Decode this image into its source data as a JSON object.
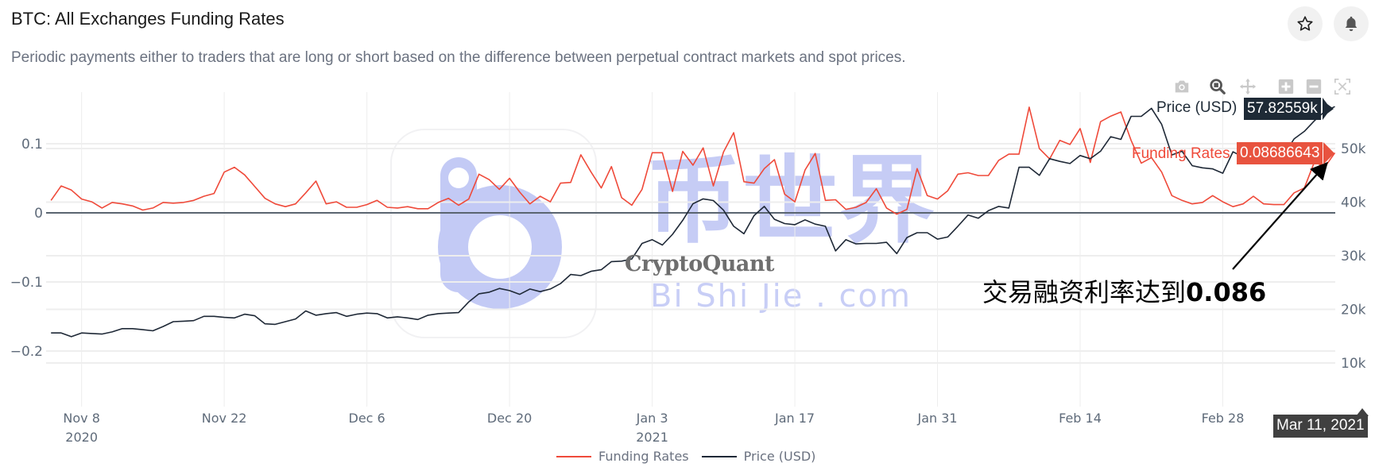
{
  "header": {
    "title": "BTC: All Exchanges Funding Rates",
    "subtitle": "Periodic payments either to traders that are long or short based on the difference between perpetual contract markets and spot prices.",
    "star_icon": "star-icon",
    "bell_icon": "bell-icon"
  },
  "modebar": [
    "camera-icon",
    "zoom-icon",
    "pan-icon",
    "zoom-in-icon",
    "zoom-out-icon",
    "autoscale-icon"
  ],
  "colors": {
    "funding": "#ef4a3a",
    "price": "#1f2937",
    "funding_label_bg": "#e8533f",
    "price_label_bg": "#1e2a36",
    "watermark": "#c3caf5"
  },
  "watermark": {
    "cn": "币世界",
    "en": "Bi Shi Jie . com",
    "brand": "CryptoQuant"
  },
  "annotation": {
    "text": "交易融资利率达到",
    "value": "0.086"
  },
  "hover": {
    "date_label": "Mar 11, 2021",
    "price_name": "Price (USD)",
    "price_value": "57.82559k",
    "funding_name": "Funding Rates",
    "funding_value": "0.08686643"
  },
  "chart_data": {
    "type": "line",
    "title": "",
    "xlabel": "",
    "ylabel_left": "",
    "ylabel_right": "",
    "grid": true,
    "legend_position": "bottom-center",
    "x_ticks": [
      {
        "date": "2020-11-08",
        "label": "Nov 8",
        "sublabel": "2020"
      },
      {
        "date": "2020-11-22",
        "label": "Nov 22",
        "sublabel": ""
      },
      {
        "date": "2020-12-06",
        "label": "Dec 6",
        "sublabel": ""
      },
      {
        "date": "2020-12-20",
        "label": "Dec 20",
        "sublabel": ""
      },
      {
        "date": "2021-01-03",
        "label": "Jan 3",
        "sublabel": "2021"
      },
      {
        "date": "2021-01-17",
        "label": "Jan 17",
        "sublabel": ""
      },
      {
        "date": "2021-01-31",
        "label": "Jan 31",
        "sublabel": ""
      },
      {
        "date": "2021-02-14",
        "label": "Feb 14",
        "sublabel": ""
      },
      {
        "date": "2021-02-28",
        "label": "Feb 28",
        "sublabel": ""
      }
    ],
    "y_left": {
      "ticks": [
        0.1,
        0,
        -0.1,
        -0.2
      ],
      "tick_labels": [
        "0.1",
        "0",
        "−0.1",
        "−0.2"
      ],
      "range": [
        -0.26,
        0.16
      ]
    },
    "y_right": {
      "ticks": [
        50000,
        40000,
        30000,
        20000,
        10000
      ],
      "tick_labels": [
        "50k",
        "40k",
        "30k",
        "20k",
        "10k"
      ],
      "range": [
        0,
        58000
      ]
    },
    "x": [
      "2020-11-05",
      "2020-11-06",
      "2020-11-07",
      "2020-11-08",
      "2020-11-09",
      "2020-11-10",
      "2020-11-11",
      "2020-11-12",
      "2020-11-13",
      "2020-11-14",
      "2020-11-15",
      "2020-11-16",
      "2020-11-17",
      "2020-11-18",
      "2020-11-19",
      "2020-11-20",
      "2020-11-21",
      "2020-11-22",
      "2020-11-23",
      "2020-11-24",
      "2020-11-25",
      "2020-11-26",
      "2020-11-27",
      "2020-11-28",
      "2020-11-29",
      "2020-11-30",
      "2020-12-01",
      "2020-12-02",
      "2020-12-03",
      "2020-12-04",
      "2020-12-05",
      "2020-12-06",
      "2020-12-07",
      "2020-12-08",
      "2020-12-09",
      "2020-12-10",
      "2020-12-11",
      "2020-12-12",
      "2020-12-13",
      "2020-12-14",
      "2020-12-15",
      "2020-12-16",
      "2020-12-17",
      "2020-12-18",
      "2020-12-19",
      "2020-12-20",
      "2020-12-21",
      "2020-12-22",
      "2020-12-23",
      "2020-12-24",
      "2020-12-25",
      "2020-12-26",
      "2020-12-27",
      "2020-12-28",
      "2020-12-29",
      "2020-12-30",
      "2020-12-31",
      "2021-01-01",
      "2021-01-02",
      "2021-01-03",
      "2021-01-04",
      "2021-01-05",
      "2021-01-06",
      "2021-01-07",
      "2021-01-08",
      "2021-01-09",
      "2021-01-10",
      "2021-01-11",
      "2021-01-12",
      "2021-01-13",
      "2021-01-14",
      "2021-01-15",
      "2021-01-16",
      "2021-01-17",
      "2021-01-18",
      "2021-01-19",
      "2021-01-20",
      "2021-01-21",
      "2021-01-22",
      "2021-01-23",
      "2021-01-24",
      "2021-01-25",
      "2021-01-26",
      "2021-01-27",
      "2021-01-28",
      "2021-01-29",
      "2021-01-30",
      "2021-01-31",
      "2021-02-01",
      "2021-02-02",
      "2021-02-03",
      "2021-02-04",
      "2021-02-05",
      "2021-02-06",
      "2021-02-07",
      "2021-02-08",
      "2021-02-09",
      "2021-02-10",
      "2021-02-11",
      "2021-02-12",
      "2021-02-13",
      "2021-02-14",
      "2021-02-15",
      "2021-02-16",
      "2021-02-17",
      "2021-02-18",
      "2021-02-19",
      "2021-02-20",
      "2021-02-21",
      "2021-02-22",
      "2021-02-23",
      "2021-02-24",
      "2021-02-25",
      "2021-02-26",
      "2021-02-27",
      "2021-02-28",
      "2021-03-01",
      "2021-03-02",
      "2021-03-03",
      "2021-03-04",
      "2021-03-05",
      "2021-03-06",
      "2021-03-07",
      "2021-03-08",
      "2021-03-09",
      "2021-03-10",
      "2021-03-11"
    ],
    "series": [
      {
        "name": "Funding Rates",
        "axis": "left",
        "values": [
          0.018,
          0.039,
          0.033,
          0.02,
          0.016,
          0.007,
          0.015,
          0.013,
          0.01,
          0.004,
          0.007,
          0.015,
          0.014,
          0.015,
          0.018,
          0.024,
          0.028,
          0.059,
          0.066,
          0.055,
          0.038,
          0.021,
          0.013,
          0.009,
          0.013,
          0.029,
          0.046,
          0.013,
          0.016,
          0.008,
          0.008,
          0.012,
          0.018,
          0.008,
          0.007,
          0.009,
          0.006,
          0.006,
          0.015,
          0.021,
          0.011,
          0.02,
          0.056,
          0.048,
          0.034,
          0.05,
          0.03,
          0.013,
          0.024,
          0.016,
          0.043,
          0.044,
          0.084,
          0.059,
          0.036,
          0.067,
          0.022,
          0.011,
          0.034,
          0.087,
          0.087,
          0.031,
          0.089,
          0.069,
          0.094,
          0.039,
          0.088,
          0.116,
          0.045,
          0.043,
          0.064,
          0.077,
          0.027,
          0.016,
          0.062,
          0.086,
          0.018,
          0.019,
          0.005,
          0.008,
          0.015,
          0.035,
          0.007,
          -0.002,
          0.005,
          0.064,
          0.025,
          0.02,
          0.032,
          0.056,
          0.058,
          0.054,
          0.054,
          0.076,
          0.085,
          0.085,
          0.153,
          0.093,
          0.078,
          0.105,
          0.099,
          0.122,
          0.073,
          0.132,
          0.14,
          0.146,
          0.105,
          0.072,
          0.08,
          0.059,
          0.025,
          0.018,
          0.013,
          0.015,
          0.025,
          0.016,
          0.009,
          0.013,
          0.024,
          0.013,
          0.012,
          0.012,
          0.029,
          0.036,
          0.074,
          0.066,
          0.08686643
        ]
      },
      {
        "name": "Price (USD)",
        "axis": "right",
        "values": [
          15600,
          15600,
          14900,
          15600,
          15500,
          15400,
          15800,
          16400,
          16400,
          16200,
          16000,
          16800,
          17700,
          17800,
          17900,
          18700,
          18700,
          18500,
          18400,
          19100,
          18800,
          17300,
          17200,
          17700,
          18200,
          19700,
          18900,
          19200,
          19400,
          18700,
          19100,
          19300,
          19200,
          18400,
          18600,
          18400,
          18100,
          18900,
          19200,
          19300,
          19400,
          21400,
          22900,
          23200,
          23900,
          23500,
          22800,
          23800,
          23300,
          23800,
          24800,
          26500,
          26300,
          27100,
          27400,
          28900,
          29000,
          29400,
          32300,
          33000,
          32000,
          34000,
          36600,
          39700,
          40600,
          40300,
          38500,
          35500,
          34100,
          37500,
          39200,
          36800,
          36000,
          35800,
          36700,
          35900,
          35500,
          30900,
          33000,
          32200,
          32300,
          32300,
          32500,
          30400,
          33400,
          34300,
          34300,
          33100,
          33500,
          35500,
          37600,
          37000,
          38400,
          39200,
          38900,
          46500,
          46500,
          45000,
          48100,
          47600,
          47200,
          48700,
          48100,
          49500,
          52200,
          51700,
          56000,
          56000,
          57500,
          54500,
          48800,
          49500,
          46800,
          46400,
          46200,
          45400,
          49400,
          48400,
          50500,
          48400,
          48800,
          48900,
          51800,
          53200,
          55200,
          56900,
          57825.59
        ]
      }
    ]
  }
}
